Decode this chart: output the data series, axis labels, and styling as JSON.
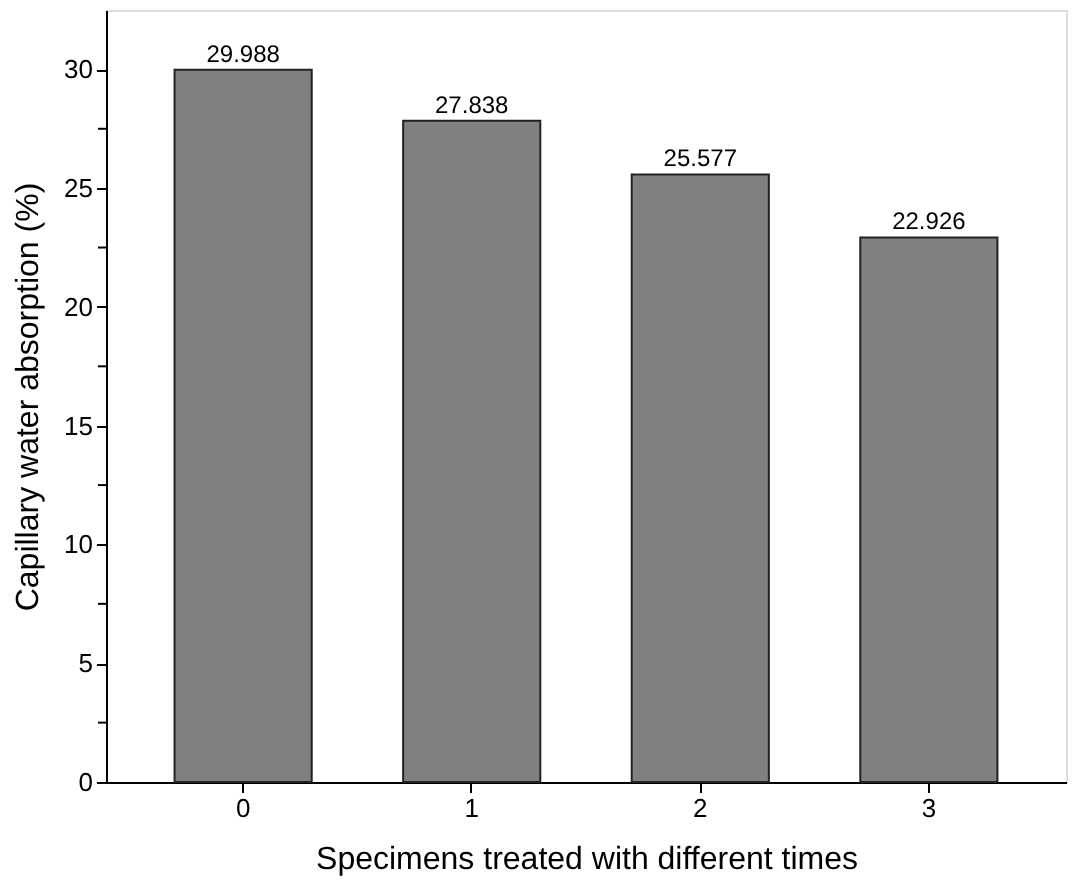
{
  "chart_data": {
    "type": "bar",
    "xlabel": "Specimens treated with different times",
    "ylabel": "Capillary water absorption (%)",
    "categories": [
      "0",
      "1",
      "2",
      "3"
    ],
    "values": [
      29.988,
      27.838,
      25.577,
      22.926
    ],
    "color": "#808080",
    "data_labels": true,
    "ylim": [
      0,
      32.5
    ],
    "yticks": [
      0,
      {
        "value": 2.5,
        "label": null
      },
      5,
      {
        "value": 7.5,
        "label": null
      },
      10,
      {
        "value": 12.5,
        "label": null
      },
      15,
      {
        "value": 17.5,
        "label": null
      },
      20,
      {
        "value": 22.5,
        "label": null
      },
      25,
      {
        "value": 27.5,
        "label": null
      },
      30
    ],
    "grid": false
  }
}
